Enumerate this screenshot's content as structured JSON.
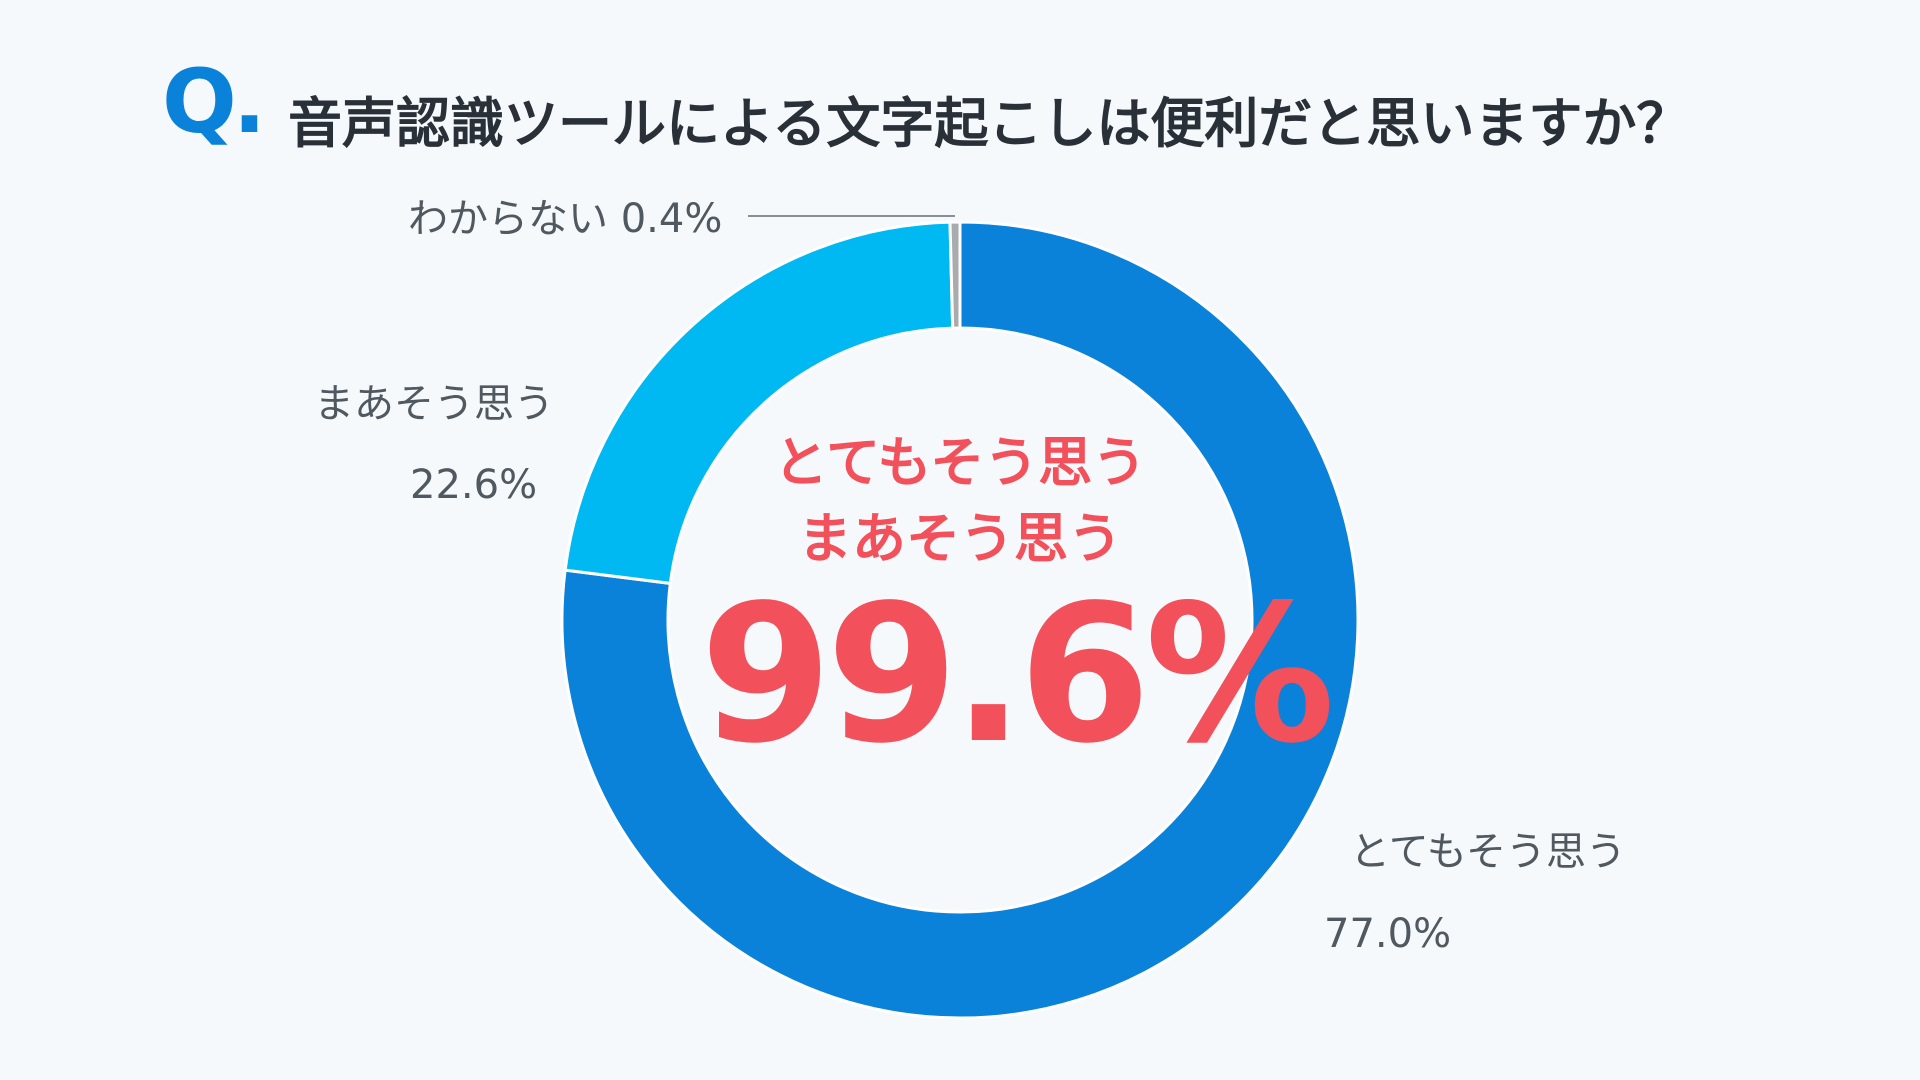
{
  "header": {
    "q_mark": "Q.",
    "question": "音声認識ツールによる文字起こしは便利だと思いますか？"
  },
  "center": {
    "line1": "とてもそう思う",
    "line2": "まあそう思う",
    "total": "99.6%"
  },
  "labels": {
    "very": {
      "name": "とてもそう思う",
      "pct": "77.0%"
    },
    "somewhat": {
      "name": "まあそう思う",
      "pct": "22.6%"
    },
    "unknown": {
      "text": "わからない 0.4%"
    }
  },
  "colors": {
    "very": "#0a82da",
    "somewhat": "#00b9f2",
    "unknown": "#a9abad",
    "accent": "#f2505a"
  },
  "chart_data": {
    "type": "pie",
    "style": "donut",
    "categories": [
      "とてもそう思う",
      "まあそう思う",
      "わからない"
    ],
    "values": [
      77.0,
      22.6,
      0.4
    ],
    "unit": "%",
    "title": "音声認識ツールによる文字起こしは便利だと思いますか？",
    "center_total": 99.6,
    "start": "top",
    "direction": "clockwise"
  }
}
